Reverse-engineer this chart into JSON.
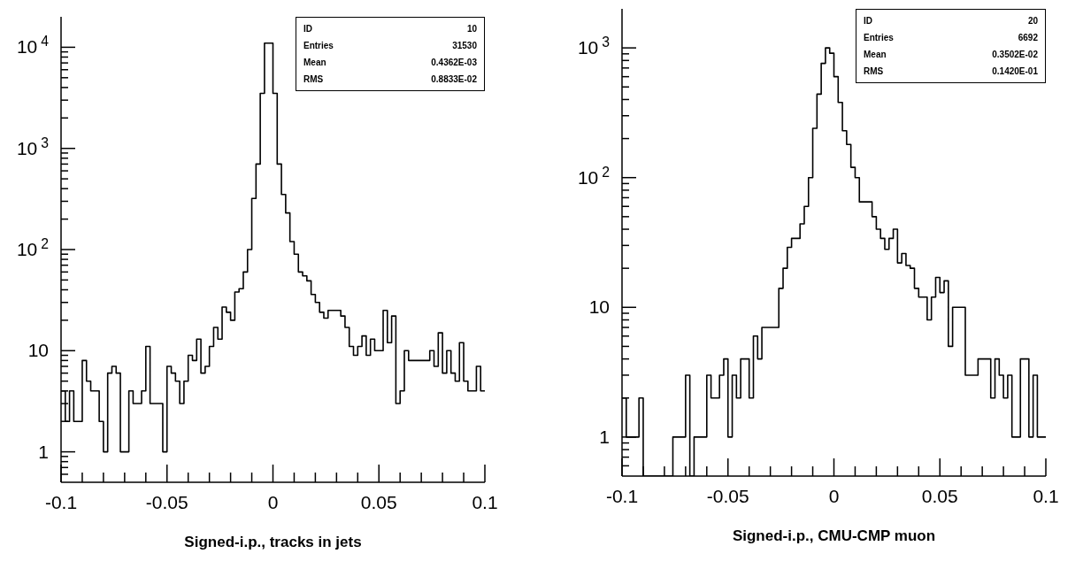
{
  "chart_data": [
    {
      "type": "histogram",
      "xlabel": "Signed-i.p., tracks in jets",
      "color": "#000000",
      "log": true,
      "bins": [
        -0.1,
        -0.098,
        -0.096,
        -0.094,
        -0.092,
        -0.09,
        -0.088,
        -0.086,
        -0.084,
        -0.082,
        -0.08,
        -0.078,
        -0.076,
        -0.074,
        -0.072,
        -0.07,
        -0.068,
        -0.066,
        -0.064,
        -0.062,
        -0.06,
        -0.058,
        -0.056,
        -0.054,
        -0.052,
        -0.05,
        -0.048,
        -0.046,
        -0.044,
        -0.042,
        -0.04,
        -0.038,
        -0.036,
        -0.034,
        -0.032,
        -0.03,
        -0.028,
        -0.026,
        -0.024,
        -0.022,
        -0.02,
        -0.018,
        -0.016,
        -0.014,
        -0.012,
        -0.01,
        -0.008,
        -0.006,
        -0.004,
        -0.002,
        0,
        0.002,
        0.004,
        0.006,
        0.008,
        0.01,
        0.012,
        0.014,
        0.016,
        0.018,
        0.02,
        0.022,
        0.024,
        0.026,
        0.028,
        0.03,
        0.032,
        0.034,
        0.036,
        0.038,
        0.04,
        0.042,
        0.044,
        0.046,
        0.048,
        0.05,
        0.052,
        0.054,
        0.056,
        0.058,
        0.06,
        0.062,
        0.064,
        0.066,
        0.068,
        0.07,
        0.072,
        0.074,
        0.076,
        0.078,
        0.08,
        0.082,
        0.084,
        0.086,
        0.088,
        0.09,
        0.092,
        0.094,
        0.096,
        0.098,
        0.1
      ],
      "values": [
        4,
        2,
        4,
        2,
        2,
        8,
        5,
        4,
        4,
        2,
        1,
        6,
        7,
        6,
        1,
        1,
        4,
        3,
        3,
        4,
        11,
        3,
        3,
        3,
        1,
        7,
        6,
        5,
        3,
        5,
        9,
        8,
        13,
        6,
        7,
        11,
        17,
        13,
        27,
        24,
        20,
        38,
        41,
        60,
        100,
        320,
        700,
        3500,
        11000,
        11000,
        3500,
        700,
        350,
        230,
        120,
        90,
        60,
        55,
        49,
        36,
        30,
        24,
        21,
        25,
        25,
        25,
        22,
        17,
        11,
        9,
        11,
        14,
        9,
        13,
        10,
        10,
        25,
        12,
        22,
        3,
        4,
        10,
        8,
        8,
        8,
        8,
        8,
        10,
        7,
        15,
        6,
        10,
        6,
        5,
        12,
        5,
        4,
        4,
        7,
        4
      ],
      "xlim": [
        -0.1,
        0.1
      ],
      "xticks": [
        -0.1,
        {
          "value": -0.09,
          "label": null
        },
        {
          "value": -0.08,
          "label": null
        },
        {
          "value": -0.07,
          "label": null
        },
        {
          "value": -0.06,
          "label": null
        },
        -0.05,
        {
          "value": -0.04,
          "label": null
        },
        {
          "value": -0.03,
          "label": null
        },
        {
          "value": -0.02,
          "label": null
        },
        {
          "value": -0.01,
          "label": null
        },
        0,
        {
          "value": 0.01,
          "label": null
        },
        {
          "value": 0.02,
          "label": null
        },
        {
          "value": 0.03,
          "label": null
        },
        {
          "value": 0.04,
          "label": null
        },
        0.05,
        {
          "value": 0.06,
          "label": null
        },
        {
          "value": 0.07,
          "label": null
        },
        {
          "value": 0.08,
          "label": null
        },
        {
          "value": 0.09,
          "label": null
        },
        0.1
      ],
      "ylim": [
        0.5,
        20000
      ],
      "yticks": [
        {
          "value": 0.6,
          "label": null
        },
        {
          "value": 0.7,
          "label": null
        },
        {
          "value": 0.8,
          "label": null
        },
        {
          "value": 0.9,
          "label": null
        },
        {
          "value": 1,
          "label": "1"
        },
        {
          "value": 2,
          "label": null
        },
        {
          "value": 3,
          "label": null
        },
        {
          "value": 4,
          "label": null
        },
        {
          "value": 5,
          "label": null
        },
        {
          "value": 6,
          "label": null
        },
        {
          "value": 7,
          "label": null
        },
        {
          "value": 8,
          "label": null
        },
        {
          "value": 9,
          "label": null
        },
        {
          "value": 10,
          "label": "10"
        },
        {
          "value": 20,
          "label": null
        },
        {
          "value": 30,
          "label": null
        },
        {
          "value": 40,
          "label": null
        },
        {
          "value": 50,
          "label": null
        },
        {
          "value": 60,
          "label": null
        },
        {
          "value": 70,
          "label": null
        },
        {
          "value": 80,
          "label": null
        },
        {
          "value": 90,
          "label": null
        },
        {
          "value": 100,
          "label": "10$^{2}$"
        },
        {
          "value": 200,
          "label": null
        },
        {
          "value": 300,
          "label": null
        },
        {
          "value": 400,
          "label": null
        },
        {
          "value": 500,
          "label": null
        },
        {
          "value": 600,
          "label": null
        },
        {
          "value": 700,
          "label": null
        },
        {
          "value": 800,
          "label": null
        },
        {
          "value": 900,
          "label": null
        },
        {
          "value": 1000,
          "label": "10$^{3}$"
        },
        {
          "value": 2000,
          "label": null
        },
        {
          "value": 3000,
          "label": null
        },
        {
          "value": 4000,
          "label": null
        },
        {
          "value": 5000,
          "label": null
        },
        {
          "value": 6000,
          "label": null
        },
        {
          "value": 7000,
          "label": null
        },
        {
          "value": 8000,
          "label": null
        },
        {
          "value": 9000,
          "label": null
        },
        {
          "value": 10000,
          "label": "10$^{4}$"
        }
      ],
      "annotations": [
        "ID",
        "10",
        "Entries",
        "31530",
        "Mean",
        "0.4362E-03",
        "RMS",
        "0.8833E-02"
      ]
    },
    {
      "type": "histogram",
      "xlabel": "Signed-i.p., CMU-CMP muon",
      "color": "#000000",
      "log": true,
      "bins": [
        -0.1,
        -0.098,
        -0.096,
        -0.094,
        -0.092,
        -0.09,
        -0.088,
        -0.086,
        -0.084,
        -0.082,
        -0.08,
        -0.078,
        -0.076,
        -0.074,
        -0.072,
        -0.07,
        -0.068,
        -0.066,
        -0.064,
        -0.062,
        -0.06,
        -0.058,
        -0.056,
        -0.054,
        -0.052,
        -0.05,
        -0.048,
        -0.046,
        -0.044,
        -0.042,
        -0.04,
        -0.038,
        -0.036,
        -0.034,
        -0.032,
        -0.03,
        -0.028,
        -0.026,
        -0.024,
        -0.022,
        -0.02,
        -0.018,
        -0.016,
        -0.014,
        -0.012,
        -0.01,
        -0.008,
        -0.006,
        -0.004,
        -0.002,
        0,
        0.002,
        0.004,
        0.006,
        0.008,
        0.01,
        0.012,
        0.014,
        0.016,
        0.018,
        0.02,
        0.022,
        0.024,
        0.026,
        0.028,
        0.03,
        0.032,
        0.034,
        0.036,
        0.038,
        0.04,
        0.042,
        0.044,
        0.046,
        0.048,
        0.05,
        0.052,
        0.054,
        0.056,
        0.058,
        0.06,
        0.062,
        0.064,
        0.066,
        0.068,
        0.07,
        0.072,
        0.074,
        0.076,
        0.078,
        0.08,
        0.082,
        0.084,
        0.086,
        0.088,
        0.09,
        0.092,
        0.094,
        0.096,
        0.098,
        0.1
      ],
      "values": [
        2,
        1,
        1,
        1,
        2,
        null,
        null,
        null,
        null,
        null,
        null,
        null,
        1,
        1,
        1,
        3,
        null,
        1,
        1,
        1,
        3,
        2,
        2,
        3,
        4,
        1,
        3,
        2,
        4,
        4,
        2,
        6,
        4,
        7,
        7,
        7,
        7,
        14,
        20,
        29,
        34,
        34,
        44,
        60,
        100,
        240,
        440,
        760,
        1000,
        910,
        600,
        380,
        230,
        180,
        120,
        100,
        65,
        65,
        65,
        50,
        40,
        34,
        28,
        34,
        40,
        22,
        26,
        21,
        20,
        14,
        12,
        12,
        8,
        12,
        17,
        13,
        16,
        5,
        10,
        10,
        10,
        3,
        3,
        3,
        4,
        4,
        4,
        2,
        4,
        3,
        2,
        3,
        1,
        1,
        4,
        4,
        1,
        3,
        1,
        1
      ],
      "xlim": [
        -0.1,
        0.1
      ],
      "xticks": [
        -0.1,
        {
          "value": -0.09,
          "label": null
        },
        {
          "value": -0.08,
          "label": null
        },
        {
          "value": -0.07,
          "label": null
        },
        {
          "value": -0.06,
          "label": null
        },
        -0.05,
        {
          "value": -0.04,
          "label": null
        },
        {
          "value": -0.03,
          "label": null
        },
        {
          "value": -0.02,
          "label": null
        },
        {
          "value": -0.01,
          "label": null
        },
        0,
        {
          "value": 0.01,
          "label": null
        },
        {
          "value": 0.02,
          "label": null
        },
        {
          "value": 0.03,
          "label": null
        },
        {
          "value": 0.04,
          "label": null
        },
        0.05,
        {
          "value": 0.06,
          "label": null
        },
        {
          "value": 0.07,
          "label": null
        },
        {
          "value": 0.08,
          "label": null
        },
        {
          "value": 0.09,
          "label": null
        },
        0.1
      ],
      "ylim": [
        0.5,
        2000
      ],
      "yticks": [
        {
          "value": 0.6,
          "label": null
        },
        {
          "value": 0.7,
          "label": null
        },
        {
          "value": 0.8,
          "label": null
        },
        {
          "value": 0.9,
          "label": null
        },
        {
          "value": 1,
          "label": "1"
        },
        {
          "value": 2,
          "label": null
        },
        {
          "value": 3,
          "label": null
        },
        {
          "value": 4,
          "label": null
        },
        {
          "value": 5,
          "label": null
        },
        {
          "value": 6,
          "label": null
        },
        {
          "value": 7,
          "label": null
        },
        {
          "value": 8,
          "label": null
        },
        {
          "value": 9,
          "label": null
        },
        {
          "value": 10,
          "label": "10"
        },
        {
          "value": 20,
          "label": null
        },
        {
          "value": 30,
          "label": null
        },
        {
          "value": 40,
          "label": null
        },
        {
          "value": 50,
          "label": null
        },
        {
          "value": 60,
          "label": null
        },
        {
          "value": 70,
          "label": null
        },
        {
          "value": 80,
          "label": null
        },
        {
          "value": 90,
          "label": null
        },
        {
          "value": 100,
          "label": "10$^{2}$"
        },
        {
          "value": 200,
          "label": null
        },
        {
          "value": 300,
          "label": null
        },
        {
          "value": 400,
          "label": null
        },
        {
          "value": 500,
          "label": null
        },
        {
          "value": 600,
          "label": null
        },
        {
          "value": 700,
          "label": null
        },
        {
          "value": 800,
          "label": null
        },
        {
          "value": 900,
          "label": null
        },
        {
          "value": 1000,
          "label": "10$^{3}$"
        }
      ],
      "annotations": [
        "ID",
        "20",
        "Entries",
        "6692",
        "Mean",
        "0.3502E-02",
        "RMS",
        "0.1420E-01"
      ]
    }
  ]
}
